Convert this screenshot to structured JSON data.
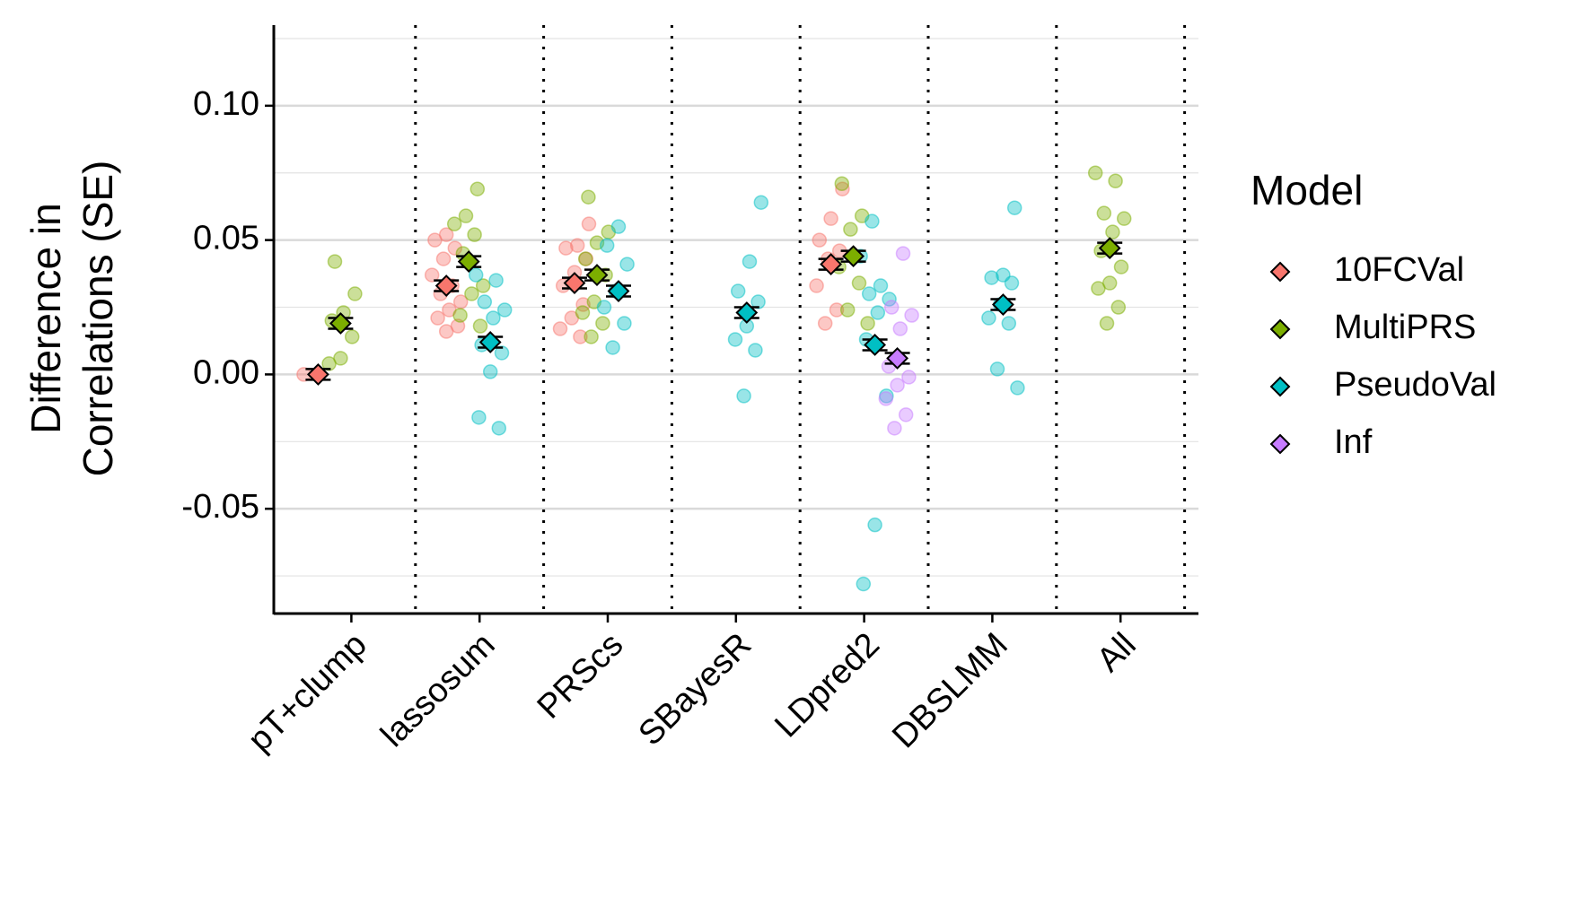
{
  "chart_data": {
    "type": "dodged-dot",
    "ylabel": [
      "Difference in",
      "Correlations (SE)"
    ],
    "legend_title": "Model",
    "categories": [
      "pT+clump",
      "lassosum",
      "PRScs",
      "SBayesR",
      "LDpred2",
      "DBSLMM",
      "All"
    ],
    "ylim": [
      -0.089,
      0.13
    ],
    "yticks": [
      {
        "value": -0.05,
        "label": "-0.05"
      },
      {
        "value": 0,
        "label": "0.00"
      },
      {
        "value": 0.05,
        "label": "0.05"
      },
      {
        "value": 0.1,
        "label": "0.10"
      }
    ],
    "minor_gridlines": [
      -0.075,
      -0.025,
      0.025,
      0.075,
      0.125
    ],
    "grid": true,
    "series": [
      {
        "name": "10FCVal",
        "color": "#F8766D",
        "values": [
          0.0,
          0.033,
          0.034,
          null,
          0.041,
          null,
          null
        ],
        "errors": [
          0.002,
          0.002,
          0.002,
          null,
          0.002,
          null,
          null
        ],
        "points": [
          [
            0.0
          ],
          [
            0.052,
            0.05,
            0.047,
            0.043,
            0.037,
            0.033,
            0.03,
            0.027,
            0.024,
            0.021,
            0.018,
            0.016
          ],
          [
            0.056,
            0.048,
            0.047,
            0.043,
            0.038,
            0.033,
            0.026,
            0.021,
            0.017,
            0.014
          ],
          [],
          [
            0.069,
            0.058,
            0.05,
            0.046,
            0.043,
            0.033,
            0.024,
            0.019
          ],
          [],
          []
        ]
      },
      {
        "name": "MultiPRS",
        "color": "#7CAE00",
        "values": [
          0.019,
          0.042,
          0.037,
          null,
          0.044,
          null,
          0.047
        ],
        "errors": [
          0.002,
          0.002,
          0.002,
          null,
          0.002,
          null,
          0.002
        ],
        "points": [
          [
            0.042,
            0.03,
            0.023,
            0.02,
            0.014,
            0.006,
            0.004
          ],
          [
            0.069,
            0.059,
            0.056,
            0.052,
            0.045,
            0.033,
            0.03,
            0.022,
            0.018
          ],
          [
            0.066,
            0.053,
            0.049,
            0.043,
            0.037,
            0.027,
            0.023,
            0.019,
            0.014
          ],
          [],
          [
            0.071,
            0.059,
            0.054,
            0.04,
            0.034,
            0.024,
            0.019
          ],
          [],
          [
            0.075,
            0.072,
            0.06,
            0.058,
            0.053,
            0.046,
            0.04,
            0.034,
            0.032,
            0.025,
            0.019
          ]
        ]
      },
      {
        "name": "PseudoVal",
        "color": "#00BFC4",
        "values": [
          null,
          0.012,
          0.031,
          0.023,
          0.011,
          0.026,
          null
        ],
        "errors": [
          null,
          0.002,
          0.002,
          0.002,
          0.002,
          0.002,
          null
        ],
        "points": [
          [],
          [
            0.037,
            0.035,
            0.027,
            0.024,
            0.021,
            0.011,
            0.008,
            0.001,
            -0.016,
            -0.02
          ],
          [
            0.055,
            0.048,
            0.041,
            0.031,
            0.025,
            0.019,
            0.01
          ],
          [
            0.064,
            0.042,
            0.031,
            0.027,
            0.018,
            0.013,
            0.009,
            -0.008
          ],
          [
            0.057,
            0.044,
            0.033,
            0.03,
            0.028,
            0.023,
            0.013,
            -0.008,
            -0.056,
            -0.078
          ],
          [
            0.062,
            0.037,
            0.036,
            0.034,
            0.026,
            0.021,
            0.019,
            0.002,
            -0.005
          ],
          []
        ]
      },
      {
        "name": "Inf",
        "color": "#C77CFF",
        "values": [
          null,
          null,
          null,
          null,
          0.006,
          null,
          null
        ],
        "errors": [
          null,
          null,
          null,
          null,
          0.002,
          null,
          null
        ],
        "points": [
          [],
          [],
          [],
          [],
          [
            0.045,
            0.025,
            0.022,
            0.017,
            0.003,
            -0.001,
            -0.004,
            -0.009,
            -0.015,
            -0.02
          ],
          [],
          []
        ]
      }
    ]
  }
}
